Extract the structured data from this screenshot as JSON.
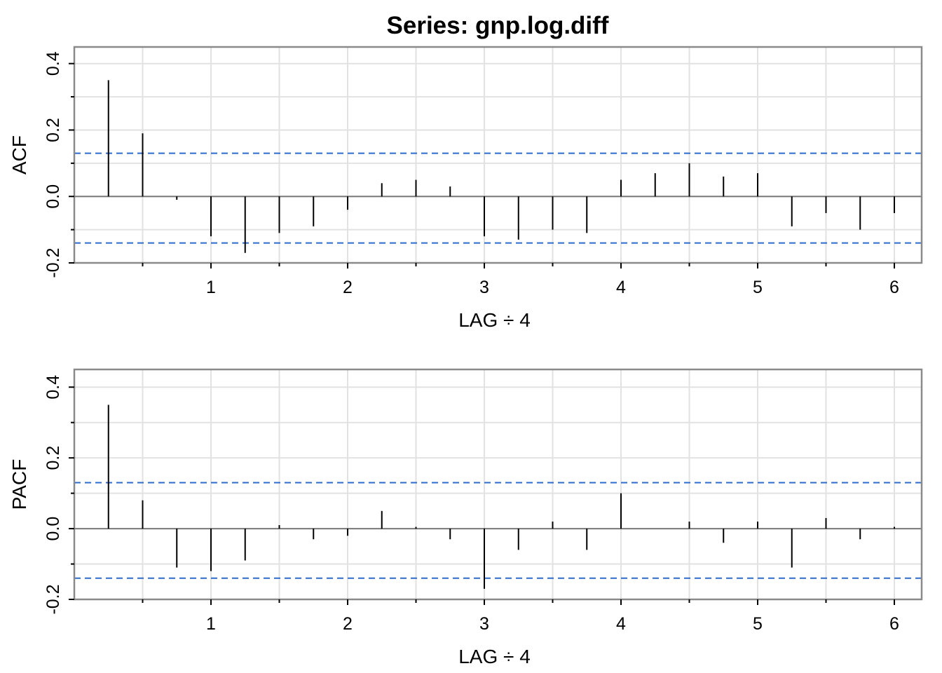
{
  "title": "Series:  gnp.log.diff",
  "colors": {
    "confidence_band": "#2d6bcf",
    "grid": "#e2e2e2",
    "frame": "#8a8a8a",
    "bar": "#000000"
  },
  "chart_data": [
    {
      "type": "bar",
      "name": "acf",
      "ylabel": "ACF",
      "xlabel": "LAG ÷ 4",
      "xlim": [
        0,
        6.2
      ],
      "ylim": [
        -0.2,
        0.45
      ],
      "x_ticks": [
        "1",
        "2",
        "3",
        "4",
        "5",
        "6"
      ],
      "y_ticks": [
        "-0.2",
        "0.0",
        "0.2",
        "0.4"
      ],
      "grid": true,
      "confidence_bounds": [
        0.13,
        -0.14
      ],
      "x": [
        0.25,
        0.5,
        0.75,
        1.0,
        1.25,
        1.5,
        1.75,
        2.0,
        2.25,
        2.5,
        2.75,
        3.0,
        3.25,
        3.5,
        3.75,
        4.0,
        4.25,
        4.5,
        4.75,
        5.0,
        5.25,
        5.5,
        5.75,
        6.0
      ],
      "values": [
        0.35,
        0.19,
        -0.01,
        -0.12,
        -0.17,
        -0.11,
        -0.09,
        -0.04,
        0.04,
        0.05,
        0.03,
        -0.12,
        -0.13,
        -0.1,
        -0.11,
        0.05,
        0.07,
        0.1,
        0.06,
        0.07,
        -0.09,
        -0.05,
        -0.1,
        -0.05
      ]
    },
    {
      "type": "bar",
      "name": "pacf",
      "ylabel": "PACF",
      "xlabel": "LAG ÷ 4",
      "xlim": [
        0,
        6.2
      ],
      "ylim": [
        -0.2,
        0.45
      ],
      "x_ticks": [
        "1",
        "2",
        "3",
        "4",
        "5",
        "6"
      ],
      "y_ticks": [
        "-0.2",
        "0.0",
        "0.2",
        "0.4"
      ],
      "grid": true,
      "confidence_bounds": [
        0.13,
        -0.14
      ],
      "x": [
        0.25,
        0.5,
        0.75,
        1.0,
        1.25,
        1.5,
        1.75,
        2.0,
        2.25,
        2.5,
        2.75,
        3.0,
        3.25,
        3.5,
        3.75,
        4.0,
        4.25,
        4.5,
        4.75,
        5.0,
        5.25,
        5.5,
        5.75,
        6.0
      ],
      "values": [
        0.35,
        0.08,
        -0.11,
        -0.12,
        -0.09,
        0.01,
        -0.03,
        -0.02,
        0.05,
        0.005,
        -0.03,
        -0.17,
        -0.06,
        0.02,
        -0.06,
        0.1,
        0.0,
        0.02,
        -0.04,
        0.02,
        -0.11,
        0.03,
        -0.03,
        0.005
      ]
    }
  ]
}
